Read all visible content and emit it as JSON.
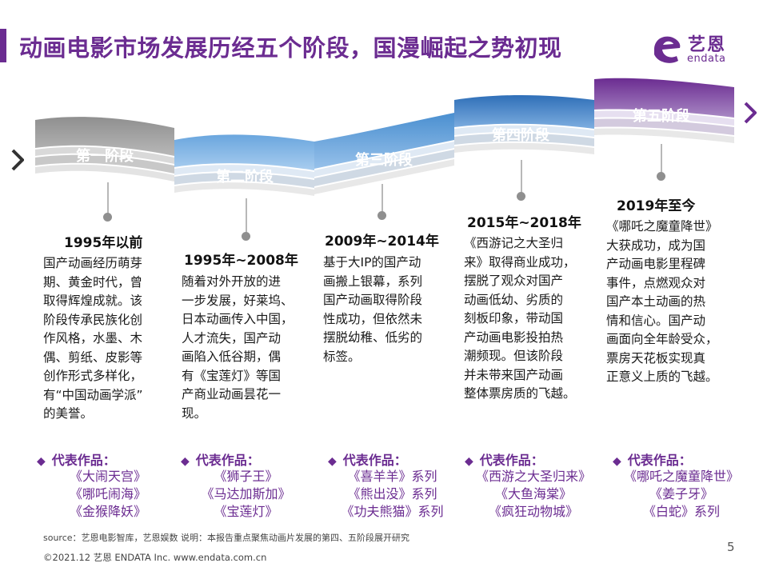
{
  "title": "动画电影市场发展历经五个阶段，国漫崛起之势初现",
  "logo": {
    "cn": "艺恩",
    "en": "endata"
  },
  "colors": {
    "accent": "#6b2c91",
    "stage1": "#8c8c8c",
    "stage2": "#5a9ad6",
    "stage3": "#4a8fd0",
    "stage4": "#2f6fb8",
    "stage5": "#6b2c91"
  },
  "stages": [
    {
      "label": "第一阶段",
      "period": "1995年以前",
      "desc": [
        "国产动画经历萌芽",
        "期、黄金时代，曾",
        "取得辉煌成就。该",
        "阶段传承民族化创",
        "作风格，水墨、木",
        "偶、剪纸、皮影等",
        "创作形式多样化，",
        "有“中国动画学派”",
        "的美誉。"
      ],
      "rep_label": "代表作品：",
      "works": [
        "《大闹天宫》",
        "《哪吒闹海》",
        "《金猴降妖》"
      ]
    },
    {
      "label": "第二阶段",
      "period": "1995年~2008年",
      "desc": [
        "随着对外开放的进",
        "一步发展，好莱坞、",
        "日本动画传入中国，",
        "人才流失，国产动",
        "画陷入低谷期，偶",
        "有《宝莲灯》等国",
        "产商业动画昙花一",
        "现。"
      ],
      "rep_label": "代表作品：",
      "works": [
        "《狮子王》",
        "《马达加斯加》",
        "《宝莲灯》"
      ]
    },
    {
      "label": "第三阶段",
      "period": "2009年~2014年",
      "desc": [
        "基于大IP的国产动",
        "画搬上银幕，系列",
        "国产动画取得阶段",
        "性成功，但依然未",
        "摆脱幼稚、低劣的",
        "标签。"
      ],
      "rep_label": "代表作品：",
      "works": [
        "《喜羊羊》系列",
        "《熊出没》系列",
        "《功夫熊猫》系列"
      ]
    },
    {
      "label": "第四阶段",
      "period": "2015年~2018年",
      "desc": [
        "《西游记之大圣归",
        "来》取得商业成功，",
        "摆脱了观众对国产",
        "动画低幼、劣质的",
        "刻板印象，带动国",
        "产动画电影投拍热",
        "潮频现。但该阶段",
        "并未带来国产动画",
        "整体票房质的飞越。"
      ],
      "rep_label": "代表作品：",
      "works": [
        "《西游之大圣归来》",
        "《大鱼海棠》",
        "《疯狂动物城》"
      ]
    },
    {
      "label": "第五阶段",
      "period": "2019年至今",
      "desc": [
        "《哪吒之魔童降世》",
        "大获成功，成为国",
        "产动画电影里程碑",
        "事件，点燃观众对",
        "国产本土动画的热",
        "情和信心。国产动",
        "画面向全年龄受众，",
        "票房天花板实现真",
        "正意义上质的飞越。"
      ],
      "rep_label": "代表作品：",
      "works": [
        "《哪吒之魔童降世》",
        "《姜子牙》",
        "《白蛇》系列"
      ]
    }
  ],
  "footer": {
    "source": "source：艺恩电影智库，艺恩娱数    说明：本报告重点聚焦动画片发展的第四、五阶段展开研究",
    "copyright": "©2021.12 艺恩 ENDATA Inc.          www.endata.com.cn",
    "page": "5"
  }
}
